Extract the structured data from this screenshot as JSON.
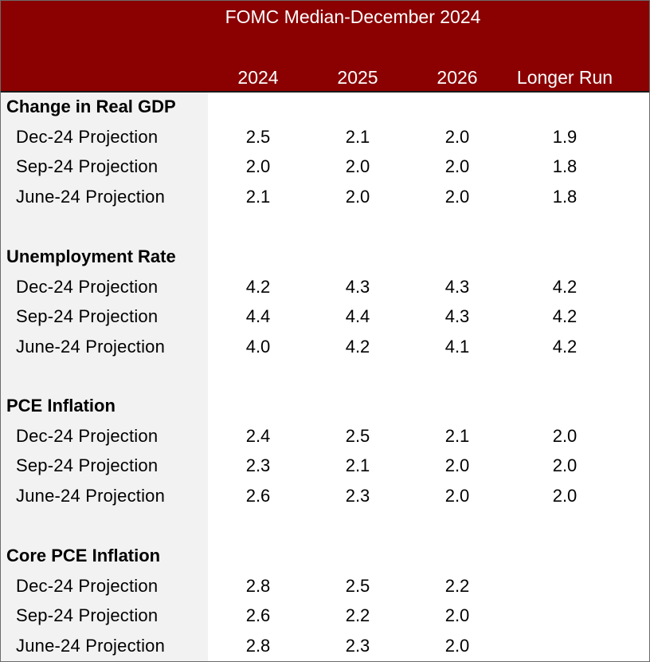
{
  "table": {
    "title": "FOMC Median-December 2024",
    "columns": [
      "2024",
      "2025",
      "2026",
      "Longer Run"
    ],
    "sections": [
      {
        "title": "Change in Real GDP",
        "rows": [
          {
            "label": "Dec-24 Projection",
            "values": [
              "2.5",
              "2.1",
              "2.0",
              "1.9"
            ]
          },
          {
            "label": "Sep-24 Projection",
            "values": [
              "2.0",
              "2.0",
              "2.0",
              "1.8"
            ]
          },
          {
            "label": "June-24 Projection",
            "values": [
              "2.1",
              "2.0",
              "2.0",
              "1.8"
            ]
          }
        ]
      },
      {
        "title": "Unemployment Rate",
        "rows": [
          {
            "label": "Dec-24 Projection",
            "values": [
              "4.2",
              "4.3",
              "4.3",
              "4.2"
            ]
          },
          {
            "label": "Sep-24 Projection",
            "values": [
              "4.4",
              "4.4",
              "4.3",
              "4.2"
            ]
          },
          {
            "label": "June-24 Projection",
            "values": [
              "4.0",
              "4.2",
              "4.1",
              "4.2"
            ]
          }
        ]
      },
      {
        "title": "PCE Inflation",
        "rows": [
          {
            "label": "Dec-24 Projection",
            "values": [
              "2.4",
              "2.5",
              "2.1",
              "2.0"
            ]
          },
          {
            "label": "Sep-24 Projection",
            "values": [
              "2.3",
              "2.1",
              "2.0",
              "2.0"
            ]
          },
          {
            "label": "June-24 Projection",
            "values": [
              "2.6",
              "2.3",
              "2.0",
              "2.0"
            ]
          }
        ]
      },
      {
        "title": "Core PCE Inflation",
        "rows": [
          {
            "label": "Dec-24 Projection",
            "values": [
              "2.8",
              "2.5",
              "2.2",
              ""
            ]
          },
          {
            "label": "Sep-24 Projection",
            "values": [
              "2.6",
              "2.2",
              "2.0",
              ""
            ]
          },
          {
            "label": "June-24 Projection",
            "values": [
              "2.8",
              "2.3",
              "2.0",
              ""
            ]
          }
        ]
      }
    ]
  },
  "colors": {
    "header_background": "#8b0000",
    "header_text": "#ffffff",
    "label_column_background": "#f2f2f2",
    "body_text": "#000000"
  }
}
